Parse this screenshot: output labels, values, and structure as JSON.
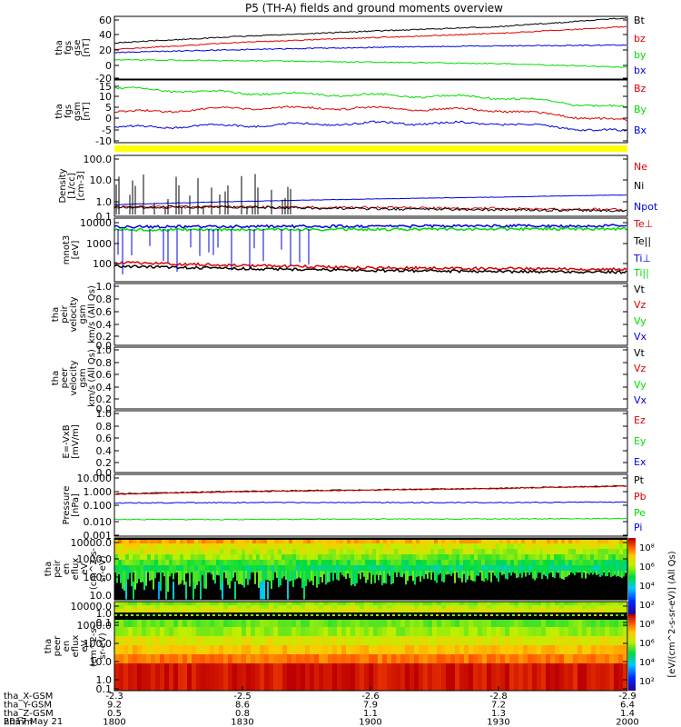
{
  "title": "P5 (TH-A) fields and ground moments overview",
  "date_label": "2017 May 21",
  "colors": {
    "black": "#000000",
    "red": "#dd0000",
    "green": "#00dd00",
    "blue": "#0000dd",
    "yellow": "#ffff00"
  },
  "panels": [
    {
      "id": "fgs_gse",
      "ylabel": [
        "tha",
        "fgs",
        "gse",
        "[nT]"
      ],
      "ticks": [
        "60",
        "40",
        "20",
        "0",
        "-20"
      ],
      "legend": [
        {
          "label": "Bt",
          "color": "black"
        },
        {
          "label": "bz",
          "color": "red"
        },
        {
          "label": "by",
          "color": "green"
        },
        {
          "label": "bx",
          "color": "blue"
        }
      ]
    },
    {
      "id": "fgs_gsm",
      "ylabel": [
        "tha",
        "fgs",
        "gsm",
        "[nT]"
      ],
      "ticks": [
        "15",
        "10",
        "5",
        "0",
        "-5",
        "-10"
      ],
      "legend": [
        {
          "label": "Bz",
          "color": "red"
        },
        {
          "label": "By",
          "color": "green"
        },
        {
          "label": "Bx",
          "color": "blue"
        }
      ]
    },
    {
      "id": "density",
      "ylabel": [
        "Density",
        "[1/cc]",
        "[cm-3]"
      ],
      "ticks": [
        "100.0",
        "10.0",
        "1.0",
        "0.1"
      ],
      "legend": [
        {
          "label": "Ne",
          "color": "red"
        },
        {
          "label": "Ni",
          "color": "black"
        },
        {
          "label": "Npot",
          "color": "blue"
        }
      ]
    },
    {
      "id": "temperature",
      "ylabel": [
        "mnot3",
        "[eV]"
      ],
      "ticks": [
        "10000",
        "1000",
        "100"
      ],
      "legend": [
        {
          "label": "Te⊥",
          "color": "red"
        },
        {
          "label": "Te||",
          "color": "black"
        },
        {
          "label": "Ti⊥",
          "color": "blue"
        },
        {
          "label": "Ti||",
          "color": "green"
        }
      ]
    },
    {
      "id": "peir_velocity",
      "ylabel": [
        "tha",
        "peir",
        "velocity",
        "gsm",
        "km/s (All Qs)"
      ],
      "ticks": [
        "1.0",
        "0.8",
        "0.6",
        "0.4",
        "0.2",
        "0.0"
      ],
      "legend": [
        {
          "label": "Vt",
          "color": "black"
        },
        {
          "label": "Vz",
          "color": "red"
        },
        {
          "label": "Vy",
          "color": "green"
        },
        {
          "label": "Vx",
          "color": "blue"
        }
      ]
    },
    {
      "id": "peer_velocity",
      "ylabel": [
        "tha",
        "peer",
        "velocity",
        "gsm",
        "km/s (All Qs)"
      ],
      "ticks": [
        "1.0",
        "0.8",
        "0.6",
        "0.4",
        "0.2",
        "0.0"
      ],
      "legend": [
        {
          "label": "Vt",
          "color": "black"
        },
        {
          "label": "Vz",
          "color": "red"
        },
        {
          "label": "Vy",
          "color": "green"
        },
        {
          "label": "Vx",
          "color": "blue"
        }
      ]
    },
    {
      "id": "efield",
      "ylabel": [
        "E=-VxB",
        "[mV/m]"
      ],
      "ticks": [
        "1.0",
        "0.8",
        "0.6",
        "0.4",
        "0.2",
        "0.0"
      ],
      "legend": [
        {
          "label": "Ez",
          "color": "red"
        },
        {
          "label": "Ey",
          "color": "green"
        },
        {
          "label": "Ex",
          "color": "blue"
        }
      ]
    },
    {
      "id": "pressure",
      "ylabel": [
        "Pressure",
        "[nPa]"
      ],
      "ticks": [
        "10.000",
        "1.000",
        "0.100",
        "0.010",
        "0.001"
      ],
      "legend": [
        {
          "label": "Pt",
          "color": "black"
        },
        {
          "label": "Pb",
          "color": "red"
        },
        {
          "label": "Pe",
          "color": "green"
        },
        {
          "label": "Pi",
          "color": "blue"
        }
      ]
    },
    {
      "id": "peir_spec",
      "ylabel": [
        "tha",
        "peir",
        "en",
        "eflux",
        "eV",
        "(cm^2-s-",
        "sr-eV)"
      ],
      "ticks": [
        "10000.0",
        "1000.0",
        "100.0",
        "10.0",
        "1.0",
        "0.1"
      ],
      "legend": []
    },
    {
      "id": "peer_spec",
      "ylabel": [
        "tha",
        "peer",
        "en",
        "eflux",
        "eV",
        "(cm^2-s-",
        "sr-eV)"
      ],
      "ticks": [
        "10000.0",
        "1000.0",
        "100.0",
        "10.0",
        "1.0",
        "0.1"
      ],
      "legend": []
    }
  ],
  "colorbar": {
    "label": "[eV/(cm^2-s-sr-eV)] (All Qs)",
    "ticks": [
      "10⁸",
      "10⁶",
      "10⁴",
      "10²",
      "10⁸",
      "10⁶",
      "10⁴",
      "10²"
    ]
  },
  "xaxis": {
    "rows": [
      {
        "label": "tha_X-GSM",
        "values": [
          "-2.3",
          "-2.5",
          "-2.6",
          "-2.8",
          "-2.9"
        ]
      },
      {
        "label": "tha_Y-GSM",
        "values": [
          "9.2",
          "8.6",
          "7.9",
          "7.2",
          "6.4"
        ]
      },
      {
        "label": "tha_Z-GSM",
        "values": [
          "0.5",
          "0.8",
          "1.1",
          "1.3",
          "1.4"
        ]
      },
      {
        "label": "hhmm",
        "values": [
          "1800",
          "1830",
          "1900",
          "1930",
          "2000"
        ]
      }
    ]
  },
  "chart_data": [
    {
      "type": "line",
      "title": "tha fgs gse [nT]",
      "x": [
        1800,
        1830,
        1900,
        1930,
        2000
      ],
      "ylim": [
        -20,
        65
      ],
      "series": [
        {
          "name": "Bt",
          "values": [
            29,
            38,
            45,
            51,
            63
          ]
        },
        {
          "name": "bz",
          "values": [
            20,
            30,
            36,
            42,
            51
          ]
        },
        {
          "name": "by",
          "values": [
            6,
            5,
            3,
            1,
            -4
          ]
        },
        {
          "name": "bx",
          "values": [
            16,
            20,
            23,
            25,
            26
          ]
        }
      ]
    },
    {
      "type": "line",
      "title": "tha fgs gsm [nT]",
      "x": [
        1800,
        1830,
        1900,
        1930,
        2000
      ],
      "ylim": [
        -13,
        16
      ],
      "series": [
        {
          "name": "Bz",
          "values": [
            1,
            3,
            3,
            2,
            -3
          ]
        },
        {
          "name": "By",
          "values": [
            12,
            10,
            9,
            8,
            3
          ]
        },
        {
          "name": "Bx",
          "values": [
            -6,
            -5,
            -4,
            -4,
            -8
          ]
        }
      ]
    },
    {
      "type": "line",
      "title": "Density [1/cc]",
      "x": [
        1800,
        1830,
        1900,
        1930,
        2000
      ],
      "ylim": [
        0.1,
        150
      ],
      "series": [
        {
          "name": "Ne",
          "values": [
            0.3,
            0.3,
            0.28,
            0.25,
            0.22
          ]
        },
        {
          "name": "Ni",
          "values": [
            0.3,
            0.3,
            0.25,
            0.22,
            0.2
          ]
        },
        {
          "name": "Npot",
          "values": [
            0.4,
            0.6,
            0.8,
            1.0,
            1.3
          ]
        }
      ]
    },
    {
      "type": "line",
      "title": "mnot3 [eV]",
      "x": [
        1800,
        1830,
        1900,
        1930,
        2000
      ],
      "ylim": [
        40,
        12000
      ],
      "series": [
        {
          "name": "Te⊥",
          "values": [
            220,
            170,
            140,
            130,
            120
          ]
        },
        {
          "name": "Te||",
          "values": [
            160,
            130,
            110,
            100,
            95
          ]
        },
        {
          "name": "Ti⊥",
          "values": [
            5500,
            5600,
            5800,
            5900,
            6000
          ]
        },
        {
          "name": "Ti||",
          "values": [
            4200,
            4300,
            4400,
            4500,
            4600
          ]
        }
      ]
    },
    {
      "type": "line",
      "title": "Pressure [nPa]",
      "x": [
        1800,
        1830,
        1900,
        1930,
        2000
      ],
      "ylim": [
        0.001,
        10
      ],
      "series": [
        {
          "name": "Pt",
          "values": [
            0.55,
            0.8,
            1.0,
            1.25,
            1.8
          ]
        },
        {
          "name": "Pb",
          "values": [
            0.5,
            0.75,
            0.95,
            1.2,
            1.7
          ]
        },
        {
          "name": "Pe",
          "values": [
            0.012,
            0.012,
            0.013,
            0.013,
            0.014
          ]
        },
        {
          "name": "Pi",
          "values": [
            0.14,
            0.15,
            0.15,
            0.15,
            0.16
          ]
        }
      ]
    },
    {
      "type": "heatmap",
      "title": "tha peir en eflux",
      "x": [
        1800,
        1830,
        1900,
        1930,
        2000
      ],
      "ylim": [
        0.1,
        30000
      ]
    },
    {
      "type": "heatmap",
      "title": "tha peer en eflux",
      "x": [
        1800,
        1830,
        1900,
        1930,
        2000
      ],
      "ylim": [
        0.1,
        30000
      ]
    }
  ]
}
